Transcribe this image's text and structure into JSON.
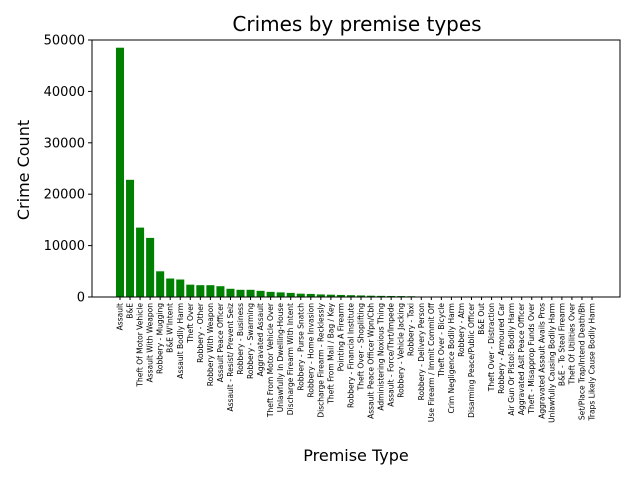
{
  "chart_data": {
    "type": "bar",
    "title": "Crimes by premise types",
    "xlabel": "Premise Type",
    "ylabel": "Crime Count",
    "ylim": [
      0,
      50000
    ],
    "yticks": [
      0,
      10000,
      20000,
      30000,
      40000,
      50000
    ],
    "ytick_labels": [
      "0",
      "10000",
      "20000",
      "30000",
      "40000",
      "50000"
    ],
    "bar_color": "#008000",
    "grid": false,
    "categories": [
      "Assault",
      "B&E",
      "Theft Of Motor Vehicle",
      "Assault With Weapon",
      "Robbery - Mugging",
      "B&E W'Intent",
      "Assault Bodily Harm",
      "Theft Over",
      "Robbery - Other",
      "Robbery With Weapon",
      "Assault Peace Officer",
      "Assault - Resist/ Prevent Seiz",
      "Robbery - Business",
      "Robbery - Swarming",
      "Aggravated Assault",
      "Theft From Motor Vehicle Over",
      "Unlawfully In Dwelling-House",
      "Discharge Firearm With Intent",
      "Robbery - Purse Snatch",
      "Robbery - Home Invasion",
      "Discharge Firearm - Recklessly",
      "Theft From Mail / Bag / Key",
      "Pointing A Firearm",
      "Robbery - Financial Institute",
      "Theft Over - Shoplifting",
      "Assault Peace Officer Wpn/Cbh",
      "Administering Noxious Thing",
      "Assault - Force/Thrt/Impede",
      "Robbery - Vehicle Jacking",
      "Robbery - Taxi",
      "Robbery - Delivery Person",
      "Use Firearm / Immit Commit Off",
      "Theft Over - Bicycle",
      "Crim Negligence Bodily Harm",
      "Robbery - Atm",
      "Disarming Peace/Public Officer",
      "B&E Out",
      "Theft Over - Distraction",
      "Robbery - Armoured Car",
      "Air Gun Or Pistol: Bodily Harm",
      "Aggravated Aslt Peace Officer",
      "Theft - Misapprop Funds Over",
      "Aggravated Assault Avails Pros",
      "Unlawfully Causing Bodily Harm",
      "B&E - To Steal Firearm",
      "Theft Of Utilities Over",
      "Set/Place Trap/Intend Death/Bh",
      "Traps Likely Cause Bodily Harm"
    ],
    "values": [
      48500,
      22800,
      13500,
      11500,
      5000,
      3600,
      3400,
      2400,
      2300,
      2300,
      2100,
      1600,
      1400,
      1400,
      1200,
      1000,
      900,
      800,
      650,
      600,
      500,
      450,
      400,
      350,
      300,
      250,
      220,
      200,
      180,
      150,
      100,
      80,
      70,
      60,
      50,
      45,
      40,
      35,
      30,
      25,
      20,
      18,
      15,
      12,
      10,
      8,
      5,
      3
    ]
  }
}
